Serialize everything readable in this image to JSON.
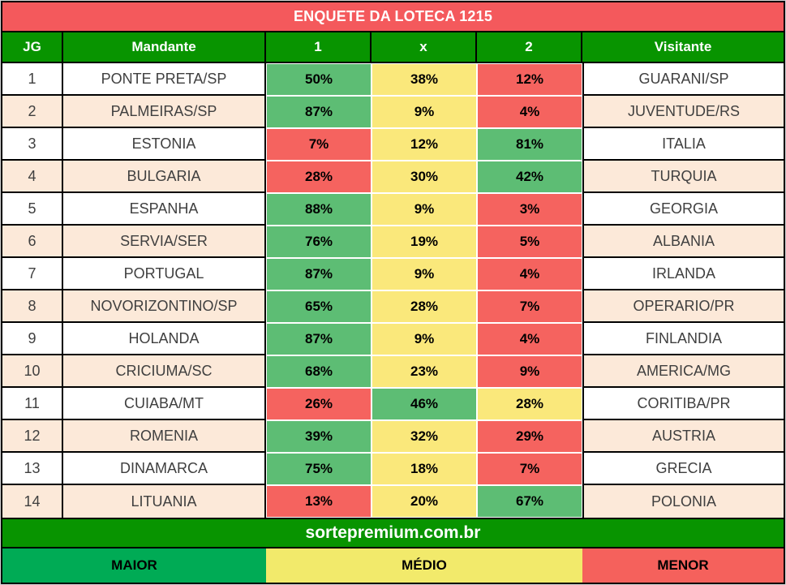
{
  "title": "ENQUETE DA LOTECA 1215",
  "columns": [
    "JG",
    "Mandante",
    "1",
    "x",
    "2",
    "Visitante"
  ],
  "rows": [
    {
      "jg": "1",
      "mandante": "PONTE PRETA/SP",
      "home": "50%",
      "draw": "38%",
      "away": "12%",
      "home_level": "green",
      "draw_level": "yellow",
      "away_level": "red",
      "visitante": "GUARANI/SP"
    },
    {
      "jg": "2",
      "mandante": "PALMEIRAS/SP",
      "home": "87%",
      "draw": "9%",
      "away": "4%",
      "home_level": "green",
      "draw_level": "yellow",
      "away_level": "red",
      "visitante": "JUVENTUDE/RS"
    },
    {
      "jg": "3",
      "mandante": "ESTONIA",
      "home": "7%",
      "draw": "12%",
      "away": "81%",
      "home_level": "red",
      "draw_level": "yellow",
      "away_level": "green",
      "visitante": "ITALIA"
    },
    {
      "jg": "4",
      "mandante": "BULGARIA",
      "home": "28%",
      "draw": "30%",
      "away": "42%",
      "home_level": "red",
      "draw_level": "yellow",
      "away_level": "green",
      "visitante": "TURQUIA"
    },
    {
      "jg": "5",
      "mandante": "ESPANHA",
      "home": "88%",
      "draw": "9%",
      "away": "3%",
      "home_level": "green",
      "draw_level": "yellow",
      "away_level": "red",
      "visitante": "GEORGIA"
    },
    {
      "jg": "6",
      "mandante": "SERVIA/SER",
      "home": "76%",
      "draw": "19%",
      "away": "5%",
      "home_level": "green",
      "draw_level": "yellow",
      "away_level": "red",
      "visitante": "ALBANIA"
    },
    {
      "jg": "7",
      "mandante": "PORTUGAL",
      "home": "87%",
      "draw": "9%",
      "away": "4%",
      "home_level": "green",
      "draw_level": "yellow",
      "away_level": "red",
      "visitante": "IRLANDA"
    },
    {
      "jg": "8",
      "mandante": "NOVORIZONTINO/SP",
      "home": "65%",
      "draw": "28%",
      "away": "7%",
      "home_level": "green",
      "draw_level": "yellow",
      "away_level": "red",
      "visitante": "OPERARIO/PR"
    },
    {
      "jg": "9",
      "mandante": "HOLANDA",
      "home": "87%",
      "draw": "9%",
      "away": "4%",
      "home_level": "green",
      "draw_level": "yellow",
      "away_level": "red",
      "visitante": "FINLANDIA"
    },
    {
      "jg": "10",
      "mandante": "CRICIUMA/SC",
      "home": "68%",
      "draw": "23%",
      "away": "9%",
      "home_level": "green",
      "draw_level": "yellow",
      "away_level": "red",
      "visitante": "AMERICA/MG"
    },
    {
      "jg": "11",
      "mandante": "CUIABA/MT",
      "home": "26%",
      "draw": "46%",
      "away": "28%",
      "home_level": "red",
      "draw_level": "green",
      "away_level": "yellow",
      "visitante": "CORITIBA/PR"
    },
    {
      "jg": "12",
      "mandante": "ROMENIA",
      "home": "39%",
      "draw": "32%",
      "away": "29%",
      "home_level": "green",
      "draw_level": "yellow",
      "away_level": "red",
      "visitante": "AUSTRIA"
    },
    {
      "jg": "13",
      "mandante": "DINAMARCA",
      "home": "75%",
      "draw": "18%",
      "away": "7%",
      "home_level": "green",
      "draw_level": "yellow",
      "away_level": "red",
      "visitante": "GRECIA"
    },
    {
      "jg": "14",
      "mandante": "LITUANIA",
      "home": "13%",
      "draw": "20%",
      "away": "67%",
      "home_level": "red",
      "draw_level": "yellow",
      "away_level": "green",
      "visitante": "POLONIA"
    }
  ],
  "footer": {
    "site": "sortepremium.com.br"
  },
  "legend": [
    {
      "label": "MAIOR",
      "color": "#00ab55"
    },
    {
      "label": "MÉDIO",
      "color": "#f2ea6b"
    },
    {
      "label": "MENOR",
      "color": "#f5615c"
    }
  ],
  "colors": {
    "title-bg": "#f4595c",
    "header-bg": "#089400",
    "footer-bg": "#089400",
    "cell-green": "#5dbd74",
    "cell-yellow": "#fae87b",
    "cell-red": "#f5635f",
    "row-bg": "#ffffff",
    "row-alt-bg": "#fce9d9",
    "legend-green": "#00ab55",
    "legend-yellow": "#f2ea6b",
    "legend-red": "#f5615c",
    "team-text": "#3f3f3f"
  },
  "chart_data": {
    "type": "table",
    "title": "ENQUETE DA LOTECA 1215",
    "columns": [
      "JG",
      "Mandante",
      "1",
      "x",
      "2",
      "Visitante"
    ],
    "rows": [
      [
        "1",
        "PONTE PRETA/SP",
        "50%",
        "38%",
        "12%",
        "GUARANI/SP"
      ],
      [
        "2",
        "PALMEIRAS/SP",
        "87%",
        "9%",
        "4%",
        "JUVENTUDE/RS"
      ],
      [
        "3",
        "ESTONIA",
        "7%",
        "12%",
        "81%",
        "ITALIA"
      ],
      [
        "4",
        "BULGARIA",
        "28%",
        "30%",
        "42%",
        "TURQUIA"
      ],
      [
        "5",
        "ESPANHA",
        "88%",
        "9%",
        "3%",
        "GEORGIA"
      ],
      [
        "6",
        "SERVIA/SER",
        "76%",
        "19%",
        "5%",
        "ALBANIA"
      ],
      [
        "7",
        "PORTUGAL",
        "87%",
        "9%",
        "4%",
        "IRLANDA"
      ],
      [
        "8",
        "NOVORIZONTINO/SP",
        "65%",
        "28%",
        "7%",
        "OPERARIO/PR"
      ],
      [
        "9",
        "HOLANDA",
        "87%",
        "9%",
        "4%",
        "FINLANDIA"
      ],
      [
        "10",
        "CRICIUMA/SC",
        "68%",
        "23%",
        "9%",
        "AMERICA/MG"
      ],
      [
        "11",
        "CUIABA/MT",
        "26%",
        "46%",
        "28%",
        "CORITIBA/PR"
      ],
      [
        "12",
        "ROMENIA",
        "39%",
        "32%",
        "29%",
        "AUSTRIA"
      ],
      [
        "13",
        "DINAMARCA",
        "75%",
        "18%",
        "7%",
        "GRECIA"
      ],
      [
        "14",
        "LITUANIA",
        "13%",
        "20%",
        "67%",
        "POLONIA"
      ]
    ],
    "cell_color_coding": {
      "green": "MAIOR (highest probability)",
      "yellow": "MÉDIO (middle probability)",
      "red": "MENOR (lowest probability)"
    },
    "footer_text": "sortepremium.com.br",
    "legend": [
      "MAIOR",
      "MÉDIO",
      "MENOR"
    ]
  }
}
